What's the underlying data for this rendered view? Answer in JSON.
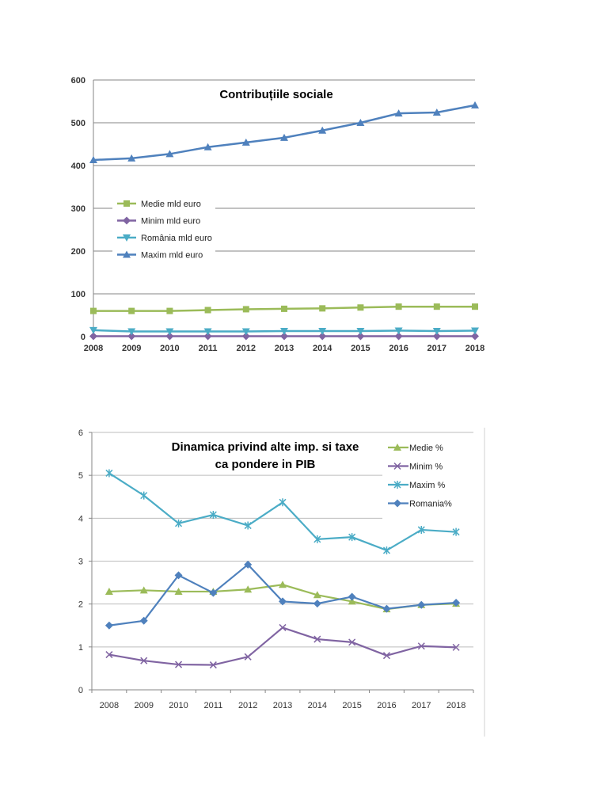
{
  "chart_data": [
    {
      "type": "line",
      "title": "Contribuțiile sociale",
      "categories": [
        "2008",
        "2009",
        "2010",
        "2011",
        "2012",
        "2013",
        "2014",
        "2015",
        "2016",
        "2017",
        "2018"
      ],
      "ylim": [
        0,
        600
      ],
      "yticks": [
        0,
        100,
        200,
        300,
        400,
        500,
        600
      ],
      "grid": true,
      "legend_position": "left-middle",
      "series": [
        {
          "name": "Medie mld euro",
          "color": "#9BBB59",
          "marker": "square",
          "values": [
            60,
            60,
            60,
            62,
            64,
            65,
            66,
            68,
            70,
            70,
            70
          ]
        },
        {
          "name": "Minim mld euro",
          "color": "#8064A2",
          "marker": "diamond",
          "values": [
            1,
            1,
            1,
            1,
            1,
            1,
            1,
            1,
            1,
            1,
            1
          ]
        },
        {
          "name": "România mld euro",
          "color": "#4BACC6",
          "marker": "triangle-down",
          "values": [
            15,
            12,
            12,
            12,
            12,
            13,
            13,
            13,
            14,
            13,
            14
          ]
        },
        {
          "name": "Maxim mld euro",
          "color": "#4F81BD",
          "marker": "triangle",
          "values": [
            413,
            417,
            427,
            443,
            454,
            465,
            482,
            500,
            522,
            524,
            541
          ]
        }
      ]
    },
    {
      "type": "line",
      "title": "Dinamica  privind alte imp. si taxe ca pondere in PIB",
      "title_lines": [
        "Dinamica  privind alte imp. si taxe",
        "ca pondere in PIB"
      ],
      "categories": [
        "2008",
        "2009",
        "2010",
        "2011",
        "2012",
        "2013",
        "2014",
        "2015",
        "2016",
        "2017",
        "2018"
      ],
      "ylim": [
        0,
        6
      ],
      "yticks": [
        0,
        1,
        2,
        3,
        4,
        5,
        6
      ],
      "grid": true,
      "legend_position": "top-right",
      "series": [
        {
          "name": "Medie %",
          "color": "#9BBB59",
          "marker": "triangle",
          "values": [
            2.29,
            2.32,
            2.29,
            2.29,
            2.34,
            2.45,
            2.21,
            2.06,
            1.88,
            1.98,
            2.01
          ]
        },
        {
          "name": "Minim %",
          "color": "#8064A2",
          "marker": "x",
          "values": [
            0.82,
            0.68,
            0.59,
            0.58,
            0.77,
            1.45,
            1.18,
            1.11,
            0.8,
            1.02,
            0.99
          ]
        },
        {
          "name": "Maxim %",
          "color": "#4BACC6",
          "marker": "star",
          "values": [
            5.05,
            4.53,
            3.88,
            4.08,
            3.83,
            4.37,
            3.51,
            3.56,
            3.25,
            3.73,
            3.68
          ]
        },
        {
          "name": "Romania%",
          "color": "#4F81BD",
          "marker": "diamond",
          "values": [
            1.5,
            1.61,
            2.67,
            2.26,
            2.92,
            2.06,
            2.01,
            2.17,
            1.89,
            1.98,
            2.03
          ]
        }
      ]
    }
  ]
}
